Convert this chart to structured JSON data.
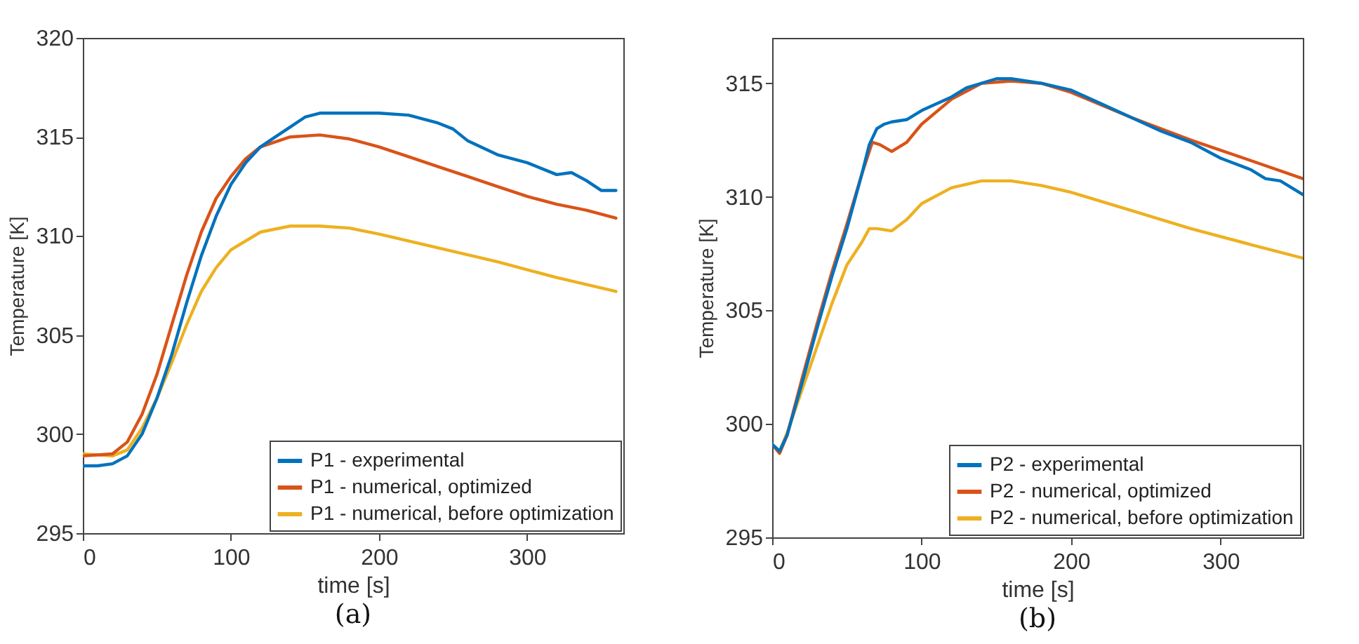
{
  "chart_data": [
    {
      "type": "line",
      "title": "(a)",
      "xlabel": "time [s]",
      "ylabel": "Temperature [K]",
      "xlim": [
        0,
        365
      ],
      "ylim": [
        295,
        320
      ],
      "xticks": [
        0,
        100,
        200,
        300
      ],
      "yticks": [
        295,
        300,
        305,
        310,
        315,
        320
      ],
      "grid": false,
      "legend": "bottom right",
      "line_style": "solid",
      "marker": "none",
      "series": [
        {
          "name": "P1 - experimental",
          "color": "#0072bd",
          "x": [
            0,
            10,
            20,
            30,
            40,
            50,
            60,
            70,
            80,
            90,
            100,
            110,
            120,
            130,
            140,
            150,
            160,
            180,
            200,
            220,
            240,
            250,
            260,
            280,
            300,
            320,
            330,
            340,
            350,
            360
          ],
          "values": [
            298.4,
            298.4,
            298.5,
            298.9,
            300,
            301.8,
            304,
            306.6,
            309,
            311,
            312.6,
            313.7,
            314.5,
            315,
            315.5,
            316,
            316.2,
            316.2,
            316.2,
            316.1,
            315.7,
            315.4,
            314.8,
            314.1,
            313.7,
            313.1,
            313.2,
            312.8,
            312.3,
            312.3
          ]
        },
        {
          "name": "P1 - numerical, optimized",
          "color": "#d95319",
          "x": [
            0,
            20,
            30,
            40,
            50,
            60,
            70,
            80,
            90,
            100,
            110,
            120,
            140,
            160,
            180,
            200,
            220,
            240,
            260,
            280,
            300,
            320,
            340,
            360
          ],
          "values": [
            298.9,
            299,
            299.6,
            301,
            303,
            305.5,
            308,
            310.2,
            311.9,
            313,
            313.9,
            314.5,
            315,
            315.1,
            314.9,
            314.5,
            314,
            313.5,
            313,
            312.5,
            312,
            311.6,
            311.3,
            310.9
          ]
        },
        {
          "name": "P1 - numerical, before optimization",
          "color": "#edb120",
          "x": [
            0,
            20,
            30,
            40,
            50,
            60,
            70,
            80,
            90,
            100,
            120,
            140,
            160,
            180,
            200,
            240,
            280,
            320,
            360
          ],
          "values": [
            299,
            298.9,
            299.2,
            300.3,
            301.8,
            303.6,
            305.5,
            307.2,
            308.4,
            309.3,
            310.2,
            310.5,
            310.5,
            310.4,
            310.1,
            309.4,
            308.7,
            307.9,
            307.2
          ]
        }
      ]
    },
    {
      "type": "line",
      "title": "(b)",
      "xlabel": "time [s]",
      "ylabel": "Temperature [K]",
      "xlim": [
        0,
        355
      ],
      "ylim": [
        295,
        317
      ],
      "xticks": [
        0,
        100,
        200,
        300
      ],
      "yticks": [
        295,
        300,
        305,
        310,
        315
      ],
      "grid": false,
      "legend": "bottom right",
      "line_style": "solid",
      "marker": "none",
      "series": [
        {
          "name": "P2 - experimental",
          "color": "#0072bd",
          "x": [
            0,
            5,
            10,
            20,
            30,
            40,
            50,
            60,
            65,
            70,
            75,
            80,
            90,
            100,
            120,
            130,
            150,
            160,
            170,
            180,
            200,
            220,
            240,
            260,
            280,
            300,
            320,
            330,
            340,
            355
          ],
          "values": [
            299.1,
            298.8,
            299.5,
            301.8,
            304.2,
            306.5,
            308.6,
            311,
            312.3,
            313,
            313.2,
            313.3,
            313.4,
            313.8,
            314.4,
            314.8,
            315.2,
            315.2,
            315.1,
            315,
            314.7,
            314.1,
            313.5,
            312.9,
            312.4,
            311.7,
            311.2,
            310.8,
            310.7,
            310.1
          ]
        },
        {
          "name": "P2 - numerical, optimized",
          "color": "#d95319",
          "x": [
            0,
            5,
            10,
            20,
            30,
            40,
            50,
            60,
            67,
            72,
            80,
            90,
            100,
            120,
            140,
            160,
            180,
            200,
            240,
            280,
            320,
            355
          ],
          "values": [
            299.1,
            298.7,
            299.5,
            302,
            304.4,
            306.7,
            308.8,
            311,
            312.4,
            312.3,
            312,
            312.4,
            313.2,
            314.3,
            315,
            315.1,
            315,
            314.6,
            313.5,
            312.5,
            311.6,
            310.8
          ]
        },
        {
          "name": "P2 - numerical, before optimization",
          "color": "#edb120",
          "x": [
            0,
            5,
            10,
            20,
            30,
            40,
            50,
            60,
            65,
            70,
            80,
            90,
            100,
            120,
            140,
            160,
            180,
            200,
            240,
            280,
            320,
            355
          ],
          "values": [
            299.1,
            298.8,
            299.6,
            301.5,
            303.4,
            305.3,
            307,
            308,
            308.6,
            308.6,
            308.5,
            309,
            309.7,
            310.4,
            310.7,
            310.7,
            310.5,
            310.2,
            309.4,
            308.6,
            307.9,
            307.3
          ]
        }
      ]
    }
  ]
}
